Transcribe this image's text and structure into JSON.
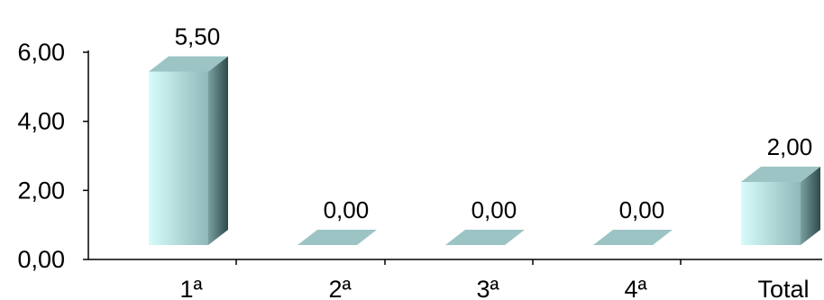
{
  "chart_data": {
    "type": "bar",
    "categories": [
      "1ª",
      "2ª",
      "3ª",
      "4ª",
      "Total"
    ],
    "values": [
      5.5,
      0.0,
      0.0,
      0.0,
      2.0
    ],
    "data_labels": [
      "5,50",
      "0,00",
      "0,00",
      "0,00",
      "2,00"
    ],
    "y_ticks": [
      0,
      2,
      4,
      6
    ],
    "y_tick_labels": [
      "0,00",
      "2,00",
      "4,00",
      "6,00"
    ],
    "ylim": [
      0,
      6
    ],
    "grid": false,
    "legend": "none",
    "style": "3d-column",
    "colors": {
      "bar_front_light": "#d8fcfc",
      "bar_front_dark": "#8fb8b8",
      "bar_top": "#9cc4c4",
      "bar_side_light": "#7aa0a0",
      "bar_side_dark": "#2f4a4a",
      "axis": "#000000"
    }
  }
}
